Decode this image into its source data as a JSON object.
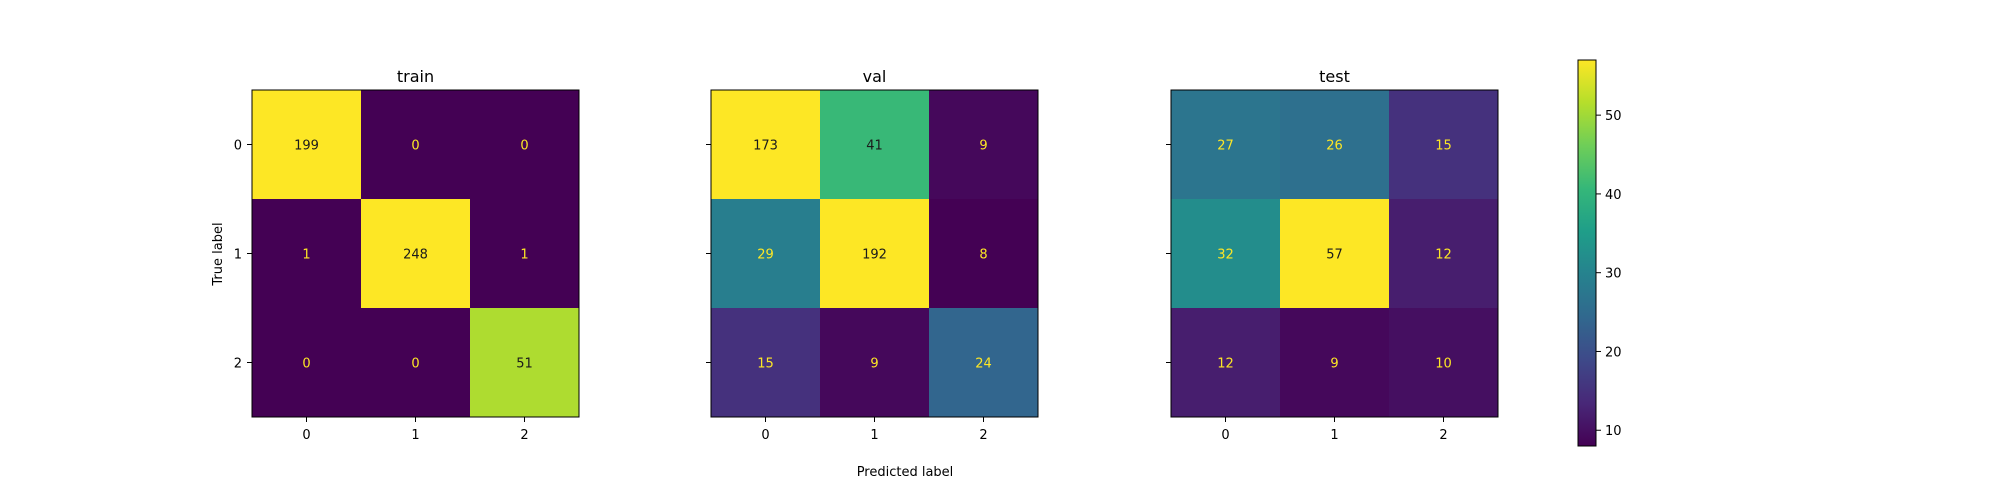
{
  "chart_data": {
    "type": "heatmap",
    "xlabel": "Predicted label",
    "ylabel": "True label",
    "colormap": "viridis",
    "colorbar": {
      "range": [
        8,
        57
      ],
      "ticks": [
        10,
        20,
        30,
        40,
        50
      ]
    },
    "panels": [
      {
        "title": "train",
        "x_categories": [
          "0",
          "1",
          "2"
        ],
        "y_categories": [
          "0",
          "1",
          "2"
        ],
        "matrix": [
          [
            199,
            0,
            0
          ],
          [
            1,
            248,
            1
          ],
          [
            0,
            0,
            51
          ]
        ]
      },
      {
        "title": "val",
        "x_categories": [
          "0",
          "1",
          "2"
        ],
        "y_categories": [
          "0",
          "1",
          "2"
        ],
        "matrix": [
          [
            173,
            41,
            9
          ],
          [
            29,
            192,
            8
          ],
          [
            15,
            9,
            24
          ]
        ]
      },
      {
        "title": "test",
        "x_categories": [
          "0",
          "1",
          "2"
        ],
        "y_categories": [
          "0",
          "1",
          "2"
        ],
        "matrix": [
          [
            27,
            26,
            15
          ],
          [
            32,
            57,
            12
          ],
          [
            12,
            9,
            10
          ]
        ]
      }
    ]
  }
}
